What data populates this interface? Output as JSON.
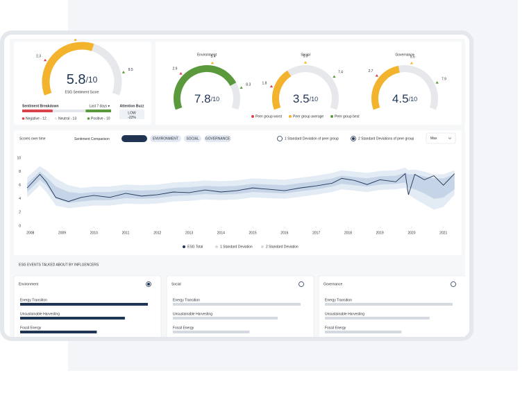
{
  "sentiment": {
    "gauge": {
      "value": 5.8,
      "scale_label": "/10",
      "caption": "ESG Sentiment Score",
      "color": "#f4b32d",
      "markers": [
        2.3,
        4.6,
        8.5
      ]
    },
    "breakdown_title": "Sentiment Breakdown",
    "period": "Last 7 days ▾",
    "breakdown": [
      {
        "label": "Negative - 12",
        "value": 12,
        "color": "#d9434d"
      },
      {
        "label": "Neutral - 13",
        "value": 13,
        "color": "#e4e7eb"
      },
      {
        "label": "Positive - 10",
        "value": 10,
        "color": "#5a9a3c"
      }
    ],
    "buzz_title": "Attention Buzz",
    "buzz_level": "LOW",
    "buzz_change": "-22%"
  },
  "peer_gauges": [
    {
      "title": "Environment",
      "value": 7.8,
      "scale_label": "/10",
      "color": "#5a9a3c",
      "markers": [
        2.9,
        5.4,
        8.3
      ]
    },
    {
      "title": "Social",
      "value": 3.5,
      "scale_label": "/10",
      "color": "#f4b32d",
      "markers": [
        1.8,
        5,
        7.4
      ],
      "marker_labels": [
        "1.8",
        "5.0",
        "7.4"
      ]
    },
    {
      "title": "Governance",
      "value": 4.5,
      "scale_label": "/10",
      "color": "#f4b32d",
      "markers": [
        2.7,
        5.5,
        7.9
      ]
    }
  ],
  "peer_legend": [
    {
      "name": "Peer group worst",
      "color": "#d9434d"
    },
    {
      "name": "Peer group average",
      "color": "#f4b32d"
    },
    {
      "name": "Peer group best",
      "color": "#5a9a3c"
    }
  ],
  "chart_data": {
    "type": "line",
    "title": "Scores over time",
    "subtitle": "Sentiment Comparison",
    "tabs": [
      "ESG TOTAL",
      "ENVIRONMENT",
      "SOCIAL",
      "GOVERNANCE"
    ],
    "active_tab": 0,
    "options": [
      "1 Standard Deviation of peer group",
      "2 Standard Deviations of peer group"
    ],
    "selected_option": 1,
    "range": "Max",
    "x": [
      2007.9,
      2008.3,
      2008.5,
      2008.8,
      2009.2,
      2009.6,
      2010,
      2010.5,
      2011,
      2011.5,
      2012,
      2012.5,
      2013,
      2013.5,
      2014,
      2014.5,
      2015,
      2015.5,
      2016,
      2016.5,
      2017,
      2017.5,
      2017.8,
      2018.2,
      2018.6,
      2019,
      2019.5,
      2019.8,
      2019.9,
      2020.1,
      2020.4,
      2020.7,
      2021,
      2021.35
    ],
    "xlim": [
      2007.7,
      2021.4
    ],
    "xticks": [
      2008,
      2009,
      2010,
      2011,
      2012,
      2013,
      2014,
      2015,
      2016,
      2017,
      2018,
      2019,
      2020,
      2021
    ],
    "ylim": [
      0,
      10
    ],
    "yticks": [
      0,
      2,
      4,
      6,
      8,
      10
    ],
    "grid": false,
    "series": [
      {
        "name": "ESG Total",
        "color": "#1f3556",
        "values": [
          5.6,
          7.6,
          6.5,
          4.2,
          3.6,
          4.2,
          4.5,
          4.2,
          4.8,
          4.4,
          4.6,
          5.0,
          4.9,
          5.3,
          5.0,
          5.2,
          5.6,
          5.4,
          5.2,
          5.6,
          5.9,
          6.3,
          7.0,
          6.7,
          6.1,
          6.8,
          6.5,
          7.7,
          4.6,
          7.6,
          6.8,
          7.4,
          6.0,
          7.7
        ]
      },
      {
        "name": "1 Standard Deviation",
        "color": "#c5d4e7",
        "low": [
          5.0,
          6.8,
          6.0,
          4.0,
          3.4,
          3.6,
          3.8,
          3.8,
          4.1,
          4.0,
          4.1,
          4.4,
          4.5,
          4.7,
          4.6,
          4.7,
          5.0,
          4.9,
          4.8,
          5.1,
          5.4,
          5.8,
          6.2,
          6.0,
          5.8,
          6.1,
          6.2,
          6.4,
          5.6,
          5.4,
          4.8,
          4.0,
          4.2,
          5.4
        ],
        "high": [
          6.3,
          8.0,
          7.2,
          5.8,
          5.0,
          4.8,
          5.0,
          5.0,
          5.3,
          5.2,
          5.3,
          5.6,
          5.7,
          5.9,
          5.8,
          5.9,
          6.2,
          6.1,
          6.0,
          6.3,
          6.6,
          7.0,
          7.4,
          7.2,
          7.0,
          7.3,
          7.4,
          7.8,
          7.6,
          7.6,
          7.3,
          7.0,
          7.0,
          7.6
        ]
      },
      {
        "name": "2 Standard Deviation",
        "color": "#e3ebf4",
        "low": [
          4.2,
          6.0,
          5.0,
          3.0,
          2.6,
          2.8,
          3.0,
          3.0,
          3.3,
          3.2,
          3.3,
          3.6,
          3.7,
          3.9,
          3.8,
          3.9,
          4.2,
          4.1,
          4.0,
          4.3,
          4.6,
          5.0,
          5.4,
          5.2,
          5.0,
          5.3,
          5.4,
          5.6,
          4.6,
          4.0,
          3.2,
          2.4,
          2.8,
          4.6
        ],
        "high": [
          7.2,
          8.8,
          8.2,
          7.0,
          6.0,
          5.6,
          5.8,
          5.8,
          6.1,
          6.0,
          6.1,
          6.4,
          6.5,
          6.7,
          6.6,
          6.7,
          7.0,
          6.9,
          6.8,
          7.1,
          7.4,
          7.8,
          8.2,
          8.0,
          7.8,
          8.1,
          8.2,
          8.6,
          8.2,
          8.3,
          8.0,
          7.6,
          7.6,
          8.2
        ]
      }
    ]
  },
  "events": {
    "title": "ESG EVENTS TALKED ABOUT BY INFLUENCERS",
    "cards": [
      {
        "title": "Environment",
        "selected": true,
        "color": "#1f3556",
        "items": [
          "Energy Transition",
          "Unsustainable Harvesting",
          "Fossil Energy"
        ],
        "values": [
          100,
          82,
          60
        ]
      },
      {
        "title": "Social",
        "selected": false,
        "color": "#d5dae1",
        "items": [
          "Energy Transition",
          "Unsustainable Harvesting",
          "Fossil Energy"
        ],
        "values": [
          100,
          82,
          60
        ]
      },
      {
        "title": "Governance",
        "selected": false,
        "color": "#d5dae1",
        "items": [
          "Energy Transition",
          "Unsustainable Harvesting",
          "Fossil Energy"
        ],
        "values": [
          100,
          82,
          60
        ]
      }
    ]
  }
}
